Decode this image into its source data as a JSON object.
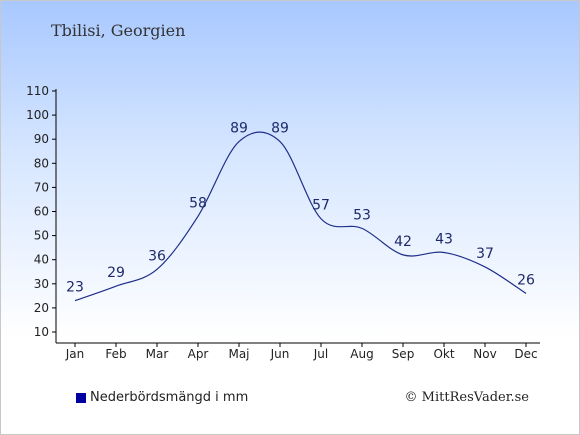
{
  "title": "Tbilisi, Georgien",
  "legend": {
    "label": "Nederbördsmängd i mm"
  },
  "credit": "© MittResVader.se",
  "colors": {
    "line": "#1f2f8a",
    "legend_swatch": "#0000a0",
    "axis": "#000000",
    "label": "#1e2a6a"
  },
  "chart_data": {
    "type": "line",
    "categories": [
      "Jan",
      "Feb",
      "Mar",
      "Apr",
      "Maj",
      "Jun",
      "Jul",
      "Aug",
      "Sep",
      "Okt",
      "Nov",
      "Dec"
    ],
    "series": [
      {
        "name": "Nederbördsmängd i mm",
        "values": [
          23,
          29,
          36,
          58,
          89,
          89,
          57,
          53,
          42,
          43,
          37,
          26
        ]
      }
    ],
    "ylim": [
      10,
      110
    ],
    "yticks": [
      10,
      20,
      30,
      40,
      50,
      60,
      70,
      80,
      90,
      100,
      110
    ],
    "grid": false,
    "legend_position": "bottom-left"
  }
}
